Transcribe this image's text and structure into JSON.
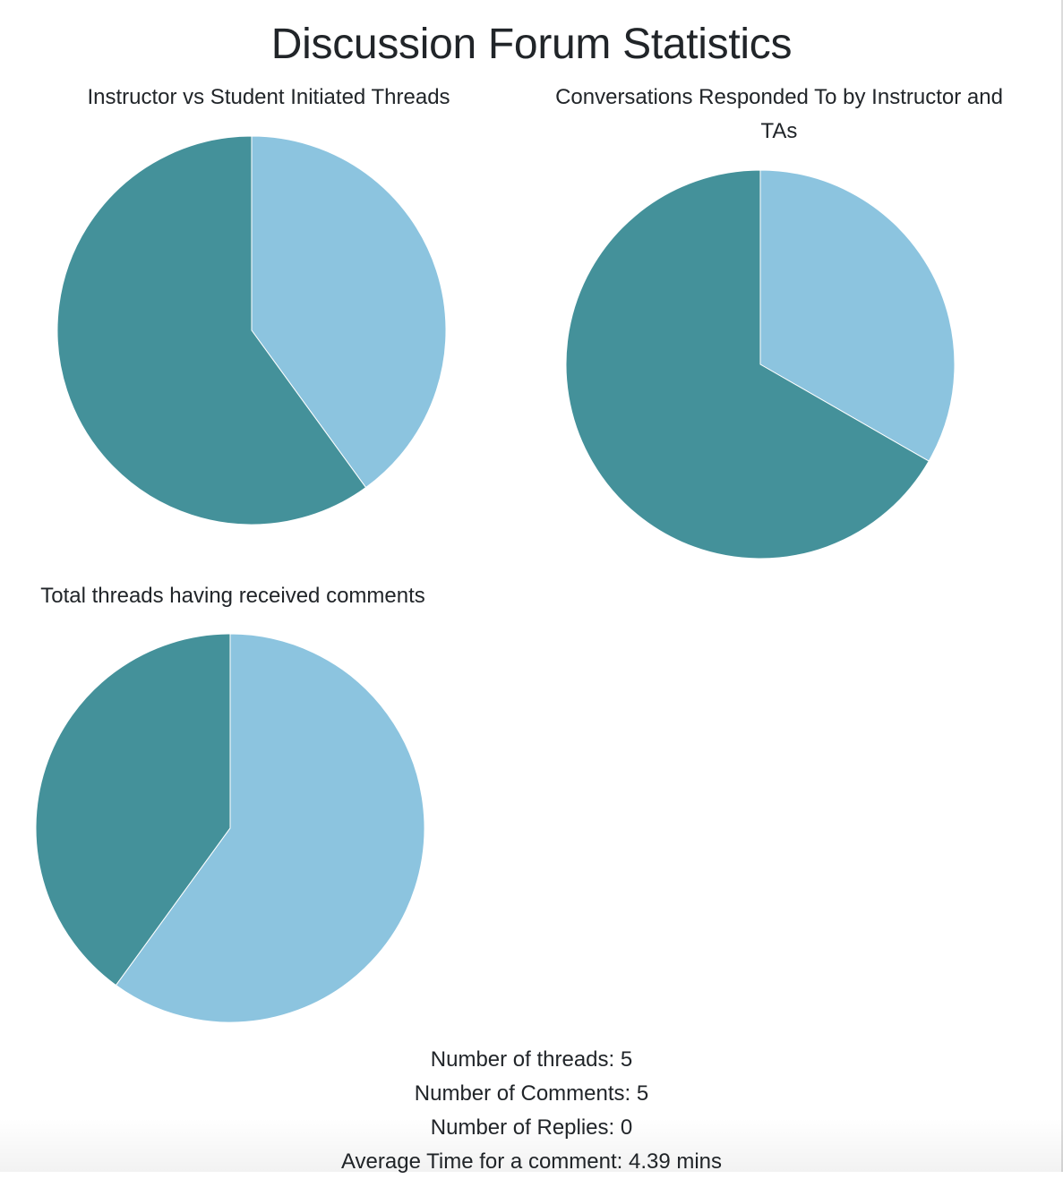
{
  "page": {
    "title": "Discussion Forum Statistics"
  },
  "colors": {
    "dark": "#44919a",
    "light": "#8cc4df"
  },
  "chart_data": [
    {
      "type": "pie",
      "title": "Instructor vs Student Initiated Threads",
      "slices": [
        {
          "value": 0.4,
          "color": "#8cc4df"
        },
        {
          "value": 0.6,
          "color": "#44919a"
        }
      ]
    },
    {
      "type": "pie",
      "title": "Conversations Responded To by Instructor and TAs",
      "slices": [
        {
          "value": 0.333,
          "color": "#8cc4df"
        },
        {
          "value": 0.667,
          "color": "#44919a"
        }
      ]
    },
    {
      "type": "pie",
      "title": "Total threads having received comments",
      "slices": [
        {
          "value": 0.6,
          "color": "#8cc4df"
        },
        {
          "value": 0.4,
          "color": "#44919a"
        }
      ]
    }
  ],
  "stats": {
    "threads": "Number of threads: 5",
    "comments": "Number of Comments: 5",
    "replies": "Number of Replies: 0",
    "average_time": "Average Time for a comment: 4.39 mins"
  }
}
